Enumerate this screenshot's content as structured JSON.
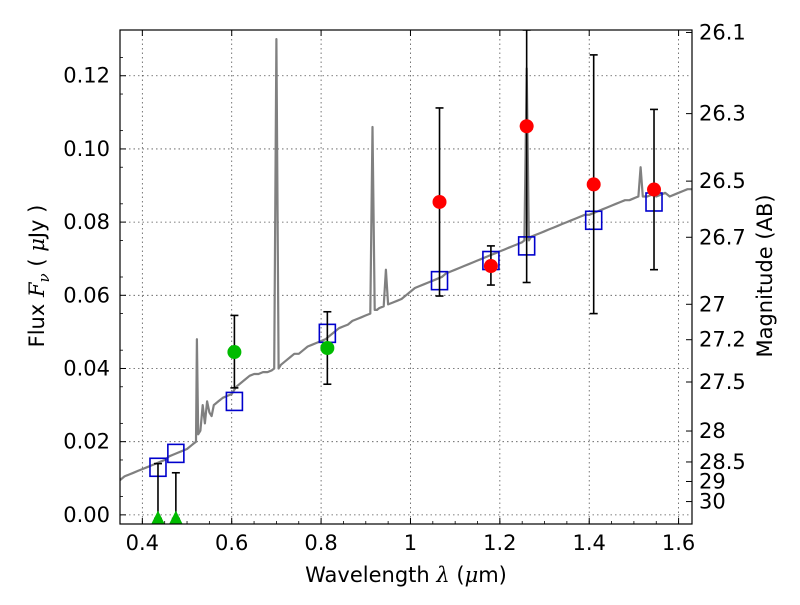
{
  "chart_data": {
    "type": "scatter",
    "xlabel": "Wavelength  λ (μm)",
    "xlabel_prefix": "Wavelength  ",
    "xlabel_lambda": "λ",
    "xlabel_mu": "μ",
    "xlabel_unit": "m)",
    "ylabel_prefix": "Flux  ",
    "ylabel_F": "F",
    "ylabel_nu": "ν",
    "ylabel_unit_open": "  ( ",
    "ylabel_mu": "μ",
    "ylabel_unit_close": "Jy )",
    "y2label": "Magnitude (AB)",
    "xlim": [
      0.35,
      1.63
    ],
    "ylim": [
      -0.0025,
      0.1325
    ],
    "grid": true,
    "x_ticks": [
      0.4,
      0.6,
      0.8,
      1.0,
      1.2,
      1.4,
      1.6
    ],
    "x_tick_labels": [
      "0.4",
      "0.6",
      "0.8",
      "1",
      "1.2",
      "1.4",
      "1.6"
    ],
    "y_ticks": [
      0.0,
      0.02,
      0.04,
      0.06,
      0.08,
      0.1,
      0.12
    ],
    "y_tick_labels": [
      "0.00",
      "0.02",
      "0.04",
      "0.06",
      "0.08",
      "0.10",
      "0.12"
    ],
    "y2_ticks": [
      26.1,
      26.3,
      26.5,
      26.7,
      27,
      27.2,
      27.5,
      28,
      28.5,
      29,
      30
    ],
    "y2_tick_labels": [
      "26.1",
      "26.3",
      "26.5",
      "26.7",
      "27",
      "27.2",
      "27.5",
      "28",
      "28.5",
      "29",
      "30"
    ],
    "colors": {
      "model": "#808080",
      "observed_red": "#ff0000",
      "observed_green": "#00bb00",
      "model_box": "#0000cc",
      "errorbar": "#000000",
      "grid": "#555555"
    },
    "series": [
      {
        "name": "model-spectrum",
        "kind": "line",
        "x": [
          0.35,
          0.36,
          0.37,
          0.38,
          0.39,
          0.4,
          0.41,
          0.42,
          0.43,
          0.44,
          0.45,
          0.46,
          0.47,
          0.48,
          0.49,
          0.5,
          0.51,
          0.515,
          0.52,
          0.522,
          0.525,
          0.53,
          0.535,
          0.54,
          0.545,
          0.55,
          0.555,
          0.56,
          0.57,
          0.58,
          0.59,
          0.6,
          0.61,
          0.62,
          0.63,
          0.64,
          0.65,
          0.66,
          0.67,
          0.68,
          0.69,
          0.695,
          0.7,
          0.705,
          0.71,
          0.72,
          0.73,
          0.74,
          0.75,
          0.76,
          0.77,
          0.78,
          0.79,
          0.8,
          0.81,
          0.82,
          0.83,
          0.84,
          0.85,
          0.86,
          0.87,
          0.88,
          0.89,
          0.9,
          0.91,
          0.915,
          0.92,
          0.925,
          0.93,
          0.94,
          0.945,
          0.95,
          0.96,
          0.97,
          0.98,
          0.99,
          1.0,
          1.01,
          1.02,
          1.03,
          1.04,
          1.05,
          1.06,
          1.07,
          1.08,
          1.09,
          1.1,
          1.11,
          1.12,
          1.13,
          1.14,
          1.15,
          1.16,
          1.17,
          1.18,
          1.19,
          1.2,
          1.21,
          1.22,
          1.23,
          1.24,
          1.25,
          1.255,
          1.26,
          1.265,
          1.27,
          1.28,
          1.29,
          1.3,
          1.31,
          1.32,
          1.33,
          1.34,
          1.35,
          1.36,
          1.37,
          1.38,
          1.39,
          1.4,
          1.41,
          1.42,
          1.43,
          1.44,
          1.45,
          1.46,
          1.47,
          1.48,
          1.49,
          1.5,
          1.51,
          1.515,
          1.52,
          1.53,
          1.54,
          1.55,
          1.56,
          1.57,
          1.58,
          1.59,
          1.6,
          1.61,
          1.62,
          1.63
        ],
        "y": [
          0.0095,
          0.0105,
          0.011,
          0.0115,
          0.012,
          0.0125,
          0.013,
          0.0135,
          0.014,
          0.0145,
          0.015,
          0.016,
          0.0165,
          0.017,
          0.0175,
          0.018,
          0.019,
          0.0195,
          0.02,
          0.048,
          0.022,
          0.023,
          0.03,
          0.025,
          0.031,
          0.028,
          0.027,
          0.03,
          0.031,
          0.032,
          0.0325,
          0.033,
          0.035,
          0.036,
          0.037,
          0.038,
          0.0385,
          0.0385,
          0.039,
          0.039,
          0.0395,
          0.04,
          0.13,
          0.04,
          0.041,
          0.042,
          0.043,
          0.044,
          0.044,
          0.045,
          0.046,
          0.0465,
          0.047,
          0.0475,
          0.048,
          0.049,
          0.05,
          0.051,
          0.0515,
          0.052,
          0.053,
          0.0535,
          0.054,
          0.0545,
          0.055,
          0.106,
          0.056,
          0.056,
          0.0565,
          0.057,
          0.067,
          0.0575,
          0.058,
          0.0585,
          0.059,
          0.06,
          0.061,
          0.062,
          0.0625,
          0.063,
          0.0635,
          0.064,
          0.0645,
          0.065,
          0.066,
          0.0665,
          0.067,
          0.0675,
          0.068,
          0.0685,
          0.069,
          0.0695,
          0.07,
          0.0705,
          0.071,
          0.0715,
          0.072,
          0.0725,
          0.073,
          0.0735,
          0.074,
          0.0745,
          0.075,
          0.122,
          0.075,
          0.076,
          0.0765,
          0.077,
          0.0775,
          0.078,
          0.0785,
          0.079,
          0.0795,
          0.08,
          0.0805,
          0.081,
          0.0815,
          0.082,
          0.082,
          0.0825,
          0.083,
          0.0835,
          0.084,
          0.0845,
          0.085,
          0.0855,
          0.086,
          0.086,
          0.0865,
          0.087,
          0.095,
          0.087,
          0.087,
          0.0875,
          0.087,
          0.0875,
          0.088,
          0.087,
          0.0875,
          0.088,
          0.0885,
          0.089,
          0.089
        ]
      },
      {
        "name": "observed-detections",
        "kind": "points-with-errorbars",
        "marker": "circle",
        "color": "red",
        "points": [
          {
            "x": 1.065,
            "y": 0.0855,
            "ylo": 0.0598,
            "yhi": 0.1112
          },
          {
            "x": 1.18,
            "y": 0.068,
            "ylo": 0.0628,
            "yhi": 0.0735
          },
          {
            "x": 1.26,
            "y": 0.1062,
            "ylo": 0.0635,
            "yhi": 0.1325
          },
          {
            "x": 1.41,
            "y": 0.0903,
            "ylo": 0.055,
            "yhi": 0.1257
          },
          {
            "x": 1.545,
            "y": 0.0889,
            "ylo": 0.067,
            "yhi": 0.1108
          }
        ]
      },
      {
        "name": "observed-optical",
        "kind": "points-with-errorbars",
        "marker": "circle",
        "color": "green",
        "points": [
          {
            "x": 0.606,
            "y": 0.0445,
            "ylo": 0.0347,
            "yhi": 0.0545
          },
          {
            "x": 0.814,
            "y": 0.0456,
            "ylo": 0.0357,
            "yhi": 0.0555
          }
        ]
      },
      {
        "name": "upper-limits",
        "kind": "points-with-errorbars",
        "marker": "triangle",
        "color": "green",
        "points": [
          {
            "x": 0.435,
            "y": -0.001,
            "ylo": -0.001,
            "yhi": 0.014
          },
          {
            "x": 0.475,
            "y": -0.001,
            "ylo": -0.001,
            "yhi": 0.0115
          }
        ]
      },
      {
        "name": "model-synthetic-photometry",
        "kind": "points",
        "marker": "open-square",
        "color": "blue",
        "points": [
          {
            "x": 0.435,
            "y": 0.013
          },
          {
            "x": 0.475,
            "y": 0.0168
          },
          {
            "x": 0.606,
            "y": 0.031
          },
          {
            "x": 0.814,
            "y": 0.0496
          },
          {
            "x": 1.065,
            "y": 0.064
          },
          {
            "x": 1.18,
            "y": 0.0695
          },
          {
            "x": 1.26,
            "y": 0.0735
          },
          {
            "x": 1.41,
            "y": 0.0805
          },
          {
            "x": 1.545,
            "y": 0.0855
          }
        ]
      }
    ]
  }
}
